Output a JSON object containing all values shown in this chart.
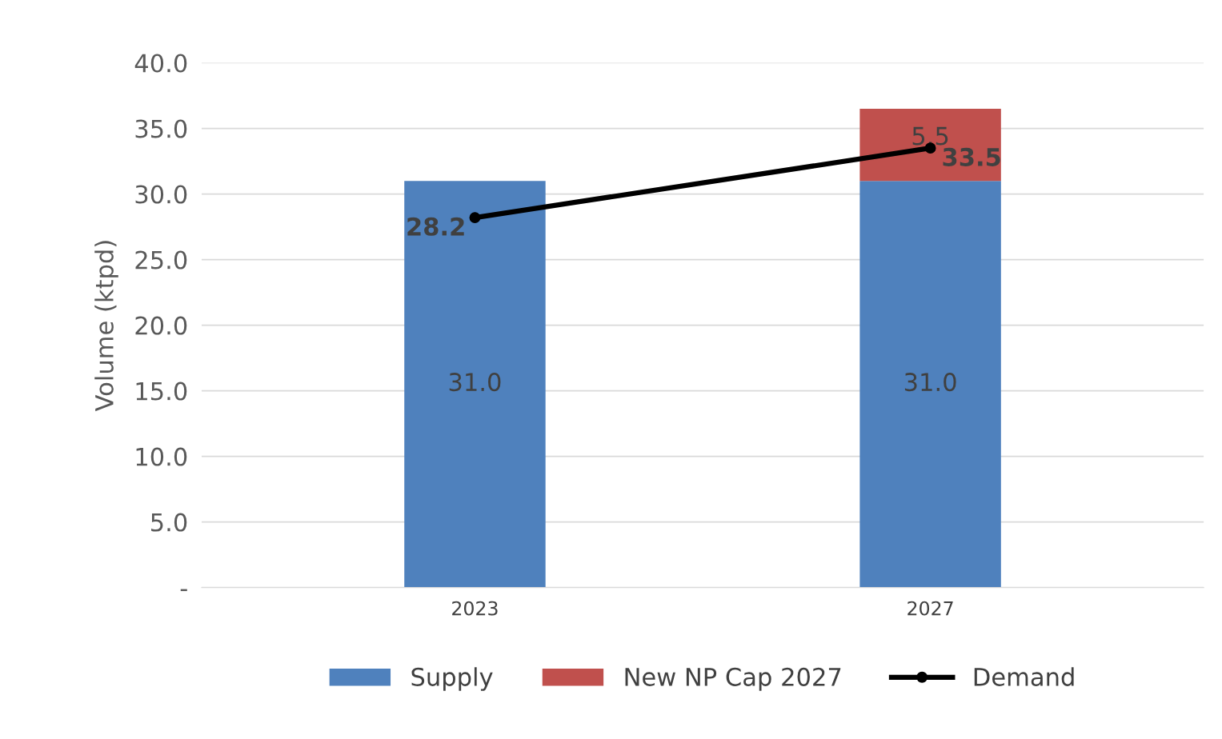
{
  "chart_data": {
    "type": "bar",
    "stacked": true,
    "ylabel": "Volume (ktpd)",
    "categories": [
      "2023",
      "2027"
    ],
    "series": [
      {
        "name": "Supply",
        "color": "#4f81bd",
        "values": [
          31.0,
          31.0
        ],
        "value_labels": [
          "31.0",
          "31.0"
        ]
      },
      {
        "name": "New NP Cap 2027",
        "color": "#c0504d",
        "values": [
          null,
          5.5
        ],
        "value_labels": [
          null,
          "5.5"
        ]
      },
      {
        "name": "Demand",
        "type": "line",
        "color": "#000000",
        "marker": "circle",
        "values": [
          28.2,
          33.5
        ],
        "value_labels": [
          "28.2",
          "33.5"
        ]
      }
    ],
    "ylim": [
      0,
      40
    ],
    "yticks": [
      {
        "value": 0,
        "label": "-"
      },
      {
        "value": 5,
        "label": "5.0"
      },
      {
        "value": 10,
        "label": "10.0"
      },
      {
        "value": 15,
        "label": "15.0"
      },
      {
        "value": 20,
        "label": "20.0"
      },
      {
        "value": 25,
        "label": "25.0"
      },
      {
        "value": 30,
        "label": "30.0"
      },
      {
        "value": 35,
        "label": "35.0"
      },
      {
        "value": 40,
        "label": "40.0"
      }
    ],
    "grid": "y",
    "legend": "bottom"
  }
}
